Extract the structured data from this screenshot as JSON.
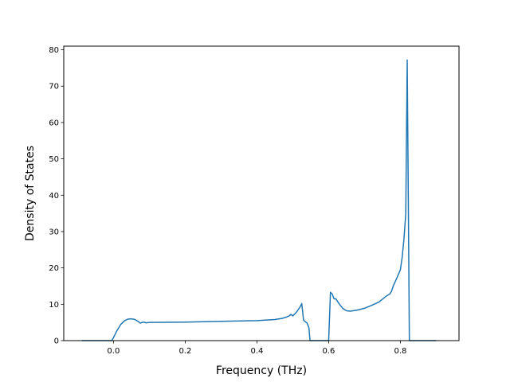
{
  "chart_data": {
    "type": "line",
    "xlabel": "Frequency (THz)",
    "ylabel": "Density of States",
    "xlim": [
      -0.1386,
      0.9634
    ],
    "ylim": [
      0,
      81
    ],
    "xticks": [
      0.0,
      0.2,
      0.4,
      0.6,
      0.8
    ],
    "xtick_labels": [
      "0.0",
      "0.2",
      "0.4",
      "0.6",
      "0.8"
    ],
    "yticks": [
      0,
      10,
      20,
      30,
      40,
      50,
      60,
      70,
      80
    ],
    "ytick_labels": [
      "0",
      "10",
      "20",
      "30",
      "40",
      "50",
      "60",
      "70",
      "80"
    ],
    "grid": false,
    "line_color": "#1f77b4",
    "series": [
      {
        "x": [
          -0.088,
          -0.005,
          0.0,
          0.01,
          0.02,
          0.03,
          0.04,
          0.05,
          0.06,
          0.065,
          0.07,
          0.075,
          0.08,
          0.085,
          0.09,
          0.1,
          0.2,
          0.3,
          0.4,
          0.45,
          0.47,
          0.48,
          0.49,
          0.495,
          0.5,
          0.51,
          0.52,
          0.525,
          0.53,
          0.54,
          0.545,
          0.548,
          0.6,
          0.603,
          0.605,
          0.61,
          0.615,
          0.62,
          0.63,
          0.64,
          0.65,
          0.66,
          0.68,
          0.7,
          0.72,
          0.74,
          0.76,
          0.77,
          0.775,
          0.78,
          0.79,
          0.8,
          0.805,
          0.81,
          0.815,
          0.819,
          0.822,
          0.825,
          0.828,
          0.9
        ],
        "y": [
          0,
          0,
          0.8,
          2.8,
          4.4,
          5.4,
          5.9,
          6.0,
          5.8,
          5.5,
          5.2,
          4.8,
          5.0,
          5.1,
          4.9,
          5.0,
          5.1,
          5.3,
          5.5,
          5.8,
          6.1,
          6.4,
          6.8,
          7.2,
          6.8,
          7.8,
          9.2,
          10.2,
          5.6,
          4.8,
          3.5,
          0,
          0,
          8.0,
          13.3,
          12.8,
          11.5,
          11.5,
          10.0,
          8.8,
          8.2,
          8.1,
          8.4,
          8.9,
          9.7,
          10.6,
          12.2,
          12.8,
          13.5,
          15.0,
          17.2,
          19.5,
          23.0,
          28.0,
          35.0,
          77.2,
          40.0,
          0,
          0,
          0
        ]
      }
    ]
  }
}
